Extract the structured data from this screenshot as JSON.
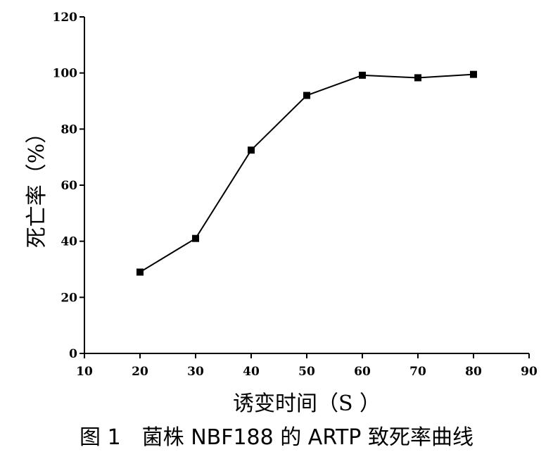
{
  "caption": "图 1　菌株 NBF188 的 ARTP 致死率曲线",
  "chart_data": {
    "type": "line",
    "title": "",
    "xlabel": "诱变时间（S ）",
    "ylabel": "死亡率（%）",
    "xlim": [
      10,
      90
    ],
    "ylim": [
      0,
      120
    ],
    "xticks": [
      10,
      20,
      30,
      40,
      50,
      60,
      70,
      80,
      90
    ],
    "yticks": [
      0,
      20,
      40,
      60,
      80,
      100,
      120
    ],
    "grid": false,
    "legend": "none",
    "marker": "square",
    "color": "#000000",
    "series": [
      {
        "x": [
          20,
          30,
          40,
          50,
          60,
          70,
          80
        ],
        "values": [
          29,
          41,
          72.5,
          92,
          99.2,
          98.3,
          99.5
        ]
      }
    ]
  }
}
